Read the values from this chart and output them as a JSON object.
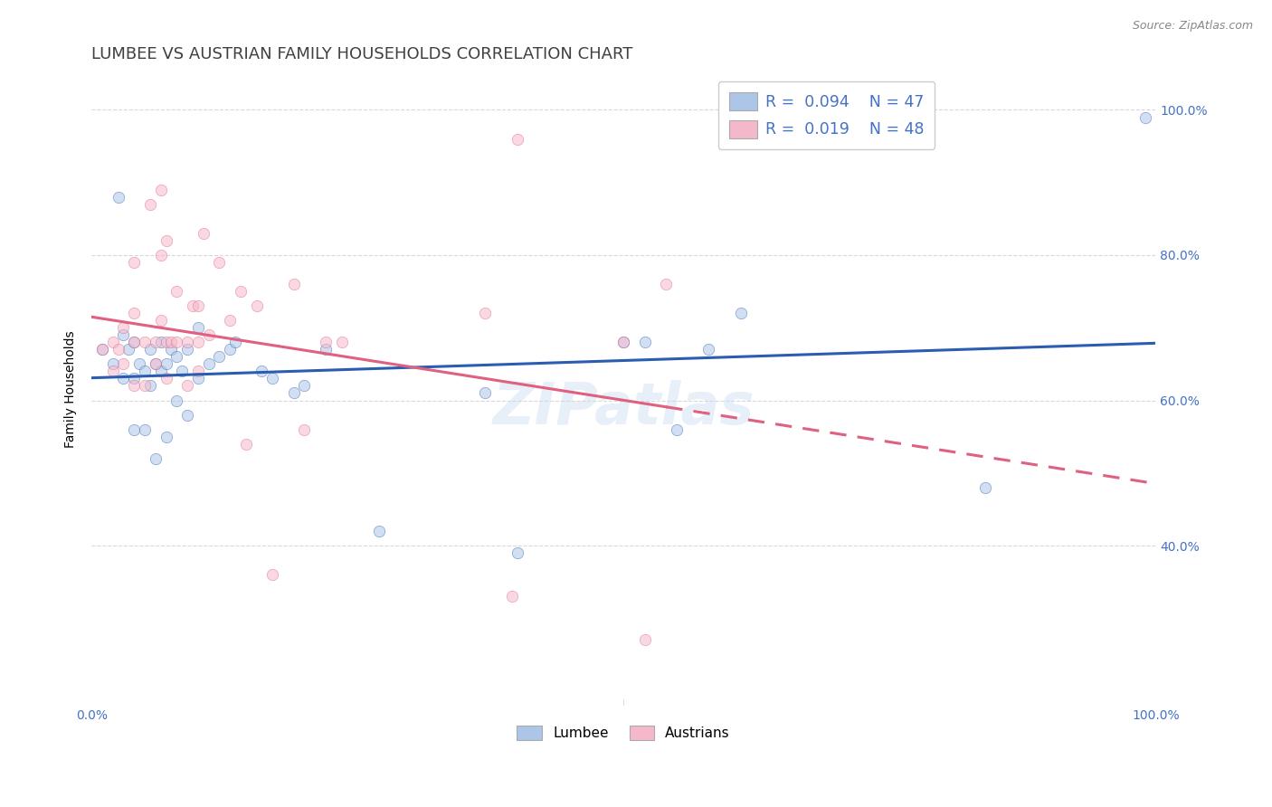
{
  "title": "LUMBEE VS AUSTRIAN FAMILY HOUSEHOLDS CORRELATION CHART",
  "source": "Source: ZipAtlas.com",
  "ylabel": "Family Households",
  "watermark": "ZIPatlas",
  "legend_R_lumbee": "R = 0.094",
  "legend_N_lumbee": "N = 47",
  "legend_R_austrians": "R = 0.019",
  "legend_N_austrians": "N = 48",
  "lumbee_color": "#adc6e8",
  "austrians_color": "#f5b8cb",
  "lumbee_line_color": "#2a5db0",
  "austrians_line_color": "#e06080",
  "background_color": "#ffffff",
  "grid_color": "#d8d8d8",
  "title_color": "#404040",
  "lumbee_x": [
    0.01,
    0.02,
    0.025,
    0.03,
    0.03,
    0.035,
    0.04,
    0.04,
    0.04,
    0.045,
    0.05,
    0.05,
    0.055,
    0.055,
    0.06,
    0.06,
    0.065,
    0.065,
    0.07,
    0.07,
    0.075,
    0.08,
    0.08,
    0.085,
    0.09,
    0.09,
    0.1,
    0.1,
    0.11,
    0.12,
    0.13,
    0.135,
    0.16,
    0.17,
    0.19,
    0.2,
    0.22,
    0.27,
    0.37,
    0.4,
    0.5,
    0.52,
    0.55,
    0.58,
    0.61,
    0.84,
    0.99
  ],
  "lumbee_y": [
    0.67,
    0.65,
    0.88,
    0.63,
    0.69,
    0.67,
    0.56,
    0.63,
    0.68,
    0.65,
    0.56,
    0.64,
    0.62,
    0.67,
    0.52,
    0.65,
    0.64,
    0.68,
    0.55,
    0.65,
    0.67,
    0.6,
    0.66,
    0.64,
    0.58,
    0.67,
    0.63,
    0.7,
    0.65,
    0.66,
    0.67,
    0.68,
    0.64,
    0.63,
    0.61,
    0.62,
    0.67,
    0.42,
    0.61,
    0.39,
    0.68,
    0.68,
    0.56,
    0.67,
    0.72,
    0.48,
    0.99
  ],
  "austrians_x": [
    0.01,
    0.02,
    0.02,
    0.025,
    0.03,
    0.03,
    0.04,
    0.04,
    0.04,
    0.04,
    0.05,
    0.05,
    0.055,
    0.06,
    0.06,
    0.065,
    0.065,
    0.065,
    0.07,
    0.07,
    0.07,
    0.075,
    0.08,
    0.08,
    0.09,
    0.09,
    0.095,
    0.1,
    0.1,
    0.1,
    0.105,
    0.11,
    0.12,
    0.13,
    0.14,
    0.145,
    0.155,
    0.17,
    0.19,
    0.2,
    0.22,
    0.235,
    0.37,
    0.395,
    0.4,
    0.5,
    0.52,
    0.54
  ],
  "austrians_y": [
    0.67,
    0.64,
    0.68,
    0.67,
    0.65,
    0.7,
    0.62,
    0.68,
    0.72,
    0.79,
    0.62,
    0.68,
    0.87,
    0.65,
    0.68,
    0.71,
    0.8,
    0.89,
    0.63,
    0.68,
    0.82,
    0.68,
    0.68,
    0.75,
    0.62,
    0.68,
    0.73,
    0.64,
    0.68,
    0.73,
    0.83,
    0.69,
    0.79,
    0.71,
    0.75,
    0.54,
    0.73,
    0.36,
    0.76,
    0.56,
    0.68,
    0.68,
    0.72,
    0.33,
    0.96,
    0.68,
    0.27,
    0.76
  ],
  "title_fontsize": 13,
  "axis_label_fontsize": 10,
  "tick_fontsize": 10,
  "marker_size": 80,
  "marker_alpha": 0.55,
  "ylim_low": 0.18,
  "ylim_high": 1.05,
  "ytick_positions": [
    0.4,
    0.6,
    0.8,
    1.0
  ],
  "ytick_labels_right": [
    "40.0%",
    "60.0%",
    "80.0%",
    "100.0%"
  ],
  "xtick_positions": [
    0.0,
    0.2,
    0.4,
    0.6,
    0.8,
    1.0
  ],
  "xtick_label_left": "0.0%",
  "xtick_label_right": "100.0%"
}
